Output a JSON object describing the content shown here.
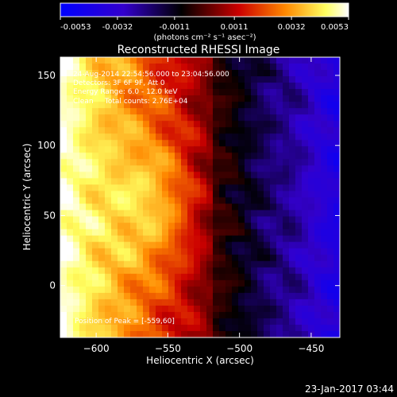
{
  "chart_data": {
    "type": "heatmap",
    "title": "Reconstructed RHESSI Image",
    "xlabel": "Heliocentric X (arcsec)",
    "ylabel": "Heliocentric Y (arcsec)",
    "xlim": [
      -625,
      -430
    ],
    "ylim": [
      -37,
      163
    ],
    "x_ticks": [
      -600,
      -550,
      -500,
      -450
    ],
    "y_ticks": [
      0,
      50,
      100,
      150
    ],
    "colorbar": {
      "ticks": [
        -0.0053,
        -0.0032,
        -0.0011,
        0.0011,
        0.0032,
        0.0053
      ],
      "unit_label": "(photons cm⁻² s⁻¹ asec⁻²)",
      "colors": [
        "#0000ff",
        "#3300cc",
        "#000000",
        "#cc0000",
        "#ff8800",
        "#ffff60",
        "#ffffff"
      ]
    },
    "annotations": [
      "24-Aug-2014 22:54:56.000 to 23:04:56.000",
      "Detectors: 3F 6F 9F, Att 0",
      "Energy Range: 6.0 - 12.0 keV",
      "Clean     Total counts: 2.76E+04"
    ],
    "peak_label": "Position of Peak = [-559,60]",
    "peak": {
      "x": -559,
      "y": 60
    },
    "grid": false,
    "legend": "none"
  },
  "footer": {
    "timestamp": "23-Jan-2017 03:44"
  }
}
